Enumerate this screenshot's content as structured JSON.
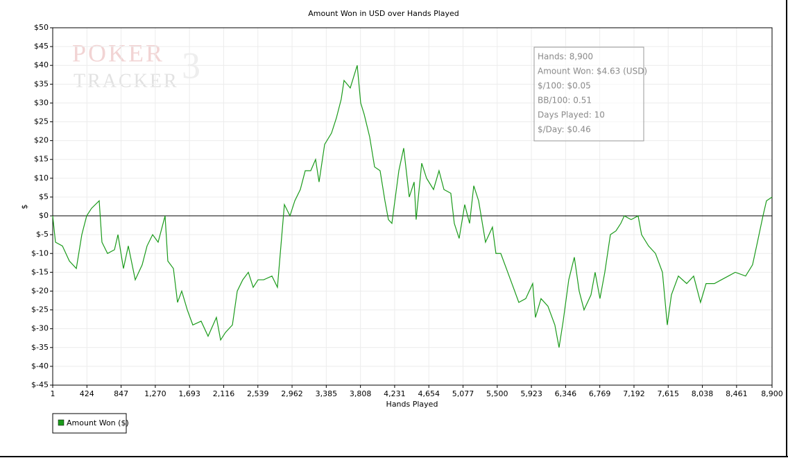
{
  "chart_data": {
    "type": "line",
    "title": "Amount Won in USD over Hands Played",
    "xlabel": "Hands Played",
    "ylabel": "$",
    "watermark": [
      "POKER",
      "TRACKER",
      "3"
    ],
    "stats": [
      "Hands: 8,900",
      "Amount Won: $4.63 (USD)",
      "$/100: $0.05",
      "BB/100: 0.51",
      "Days Played: 10",
      "$/Day: $0.46"
    ],
    "xlim": [
      1,
      8900
    ],
    "ylim": [
      -45,
      50
    ],
    "xticks": [
      1,
      424,
      847,
      {
        "value": 1270,
        "label": "1,270"
      },
      {
        "value": 1693,
        "label": "1,693"
      },
      {
        "value": 2116,
        "label": "2,116"
      },
      {
        "value": 2539,
        "label": "2,539"
      },
      {
        "value": 2962,
        "label": "2,962"
      },
      {
        "value": 3385,
        "label": "3,385"
      },
      {
        "value": 3808,
        "label": "3,808"
      },
      {
        "value": 4231,
        "label": "4,231"
      },
      {
        "value": 4654,
        "label": "4,654"
      },
      {
        "value": 5077,
        "label": "5,077"
      },
      {
        "value": 5500,
        "label": "5,500"
      },
      {
        "value": 5923,
        "label": "5,923"
      },
      {
        "value": 6346,
        "label": "6,346"
      },
      {
        "value": 6769,
        "label": "6,769"
      },
      {
        "value": 7192,
        "label": "7,192"
      },
      {
        "value": 7615,
        "label": "7,615"
      },
      {
        "value": 8038,
        "label": "8,038"
      },
      {
        "value": 8461,
        "label": "8,461"
      },
      {
        "value": 8900,
        "label": "8,900"
      }
    ],
    "yticks": [
      {
        "value": 50,
        "label": "$50"
      },
      {
        "value": 45,
        "label": "$45"
      },
      {
        "value": 40,
        "label": "$40"
      },
      {
        "value": 35,
        "label": "$35"
      },
      {
        "value": 30,
        "label": "$30"
      },
      {
        "value": 25,
        "label": "$25"
      },
      {
        "value": 20,
        "label": "$20"
      },
      {
        "value": 15,
        "label": "$15"
      },
      {
        "value": 10,
        "label": "$10"
      },
      {
        "value": 5,
        "label": "$5"
      },
      {
        "value": 0,
        "label": "$0"
      },
      {
        "value": -5,
        "label": "$-5"
      },
      {
        "value": -10,
        "label": "$-10"
      },
      {
        "value": -15,
        "label": "$-15"
      },
      {
        "value": -20,
        "label": "$-20"
      },
      {
        "value": -25,
        "label": "$-25"
      },
      {
        "value": -30,
        "label": "$-30"
      },
      {
        "value": -35,
        "label": "$-35"
      },
      {
        "value": -40,
        "label": "$-40"
      },
      {
        "value": -45,
        "label": "$-45"
      }
    ],
    "grid": true,
    "x": [
      1,
      35,
      121,
      207,
      293,
      361,
      421,
      481,
      576,
      610,
      679,
      765,
      808,
      876,
      936,
      1022,
      1108,
      1168,
      1237,
      1305,
      1391,
      1425,
      1494,
      1545,
      1597,
      1666,
      1734,
      1837,
      1923,
      2026,
      2078,
      2138,
      2224,
      2284,
      2352,
      2421,
      2481,
      2541,
      2610,
      2713,
      2781,
      2824,
      2867,
      2936,
      2996,
      3064,
      3125,
      3193,
      3253,
      3296,
      3365,
      3450,
      3510,
      3570,
      3605,
      3682,
      3725,
      3768,
      3811,
      3854,
      3922,
      3983,
      4051,
      4111,
      4154,
      4197,
      4283,
      4343,
      4412,
      4472,
      4497,
      4566,
      4626,
      4712,
      4780,
      4841,
      4926,
      4969,
      5029,
      5098,
      5158,
      5210,
      5270,
      5355,
      5441,
      5484,
      5544,
      5613,
      5699,
      5767,
      5853,
      5939,
      5973,
      6042,
      6127,
      6213,
      6265,
      6316,
      6385,
      6454,
      6514,
      6574,
      6660,
      6711,
      6771,
      6831,
      6900,
      6969,
      7029,
      7072,
      7157,
      7243,
      7286,
      7372,
      7458,
      7544,
      7604,
      7655,
      7741,
      7844,
      7930,
      8015,
      8084,
      8187,
      8273,
      8359,
      8445,
      8573,
      8659,
      8719,
      8788,
      8831,
      8900
    ],
    "series": [
      {
        "name": "Amount Won ($)",
        "color": "#1a9a1a",
        "values": [
          0,
          -7,
          -8,
          -12,
          -14,
          -5,
          0,
          2,
          4,
          -7,
          -10,
          -9,
          -5,
          -14,
          -8,
          -17,
          -13,
          -8,
          -5,
          -7,
          0,
          -12,
          -14,
          -23,
          -20,
          -25,
          -29,
          -28,
          -32,
          -27,
          -33,
          -31,
          -29,
          -20,
          -17,
          -15,
          -19,
          -17,
          -17,
          -16,
          -19,
          -8,
          3,
          0,
          4,
          7,
          12,
          12,
          15,
          9,
          19,
          22,
          26,
          31,
          36,
          34,
          37,
          40,
          30,
          27,
          21,
          13,
          12,
          4,
          -1,
          -2,
          12,
          18,
          5,
          9,
          -1,
          14,
          10,
          7,
          12,
          7,
          6,
          -2,
          -6,
          3,
          -2,
          8,
          4,
          -7,
          -3,
          -10,
          -10,
          -14,
          -19,
          -23,
          -22,
          -18,
          -27,
          -22,
          -24,
          -29,
          -35,
          -28,
          -17,
          -11,
          -20,
          -25,
          -21,
          -15,
          -22,
          -15,
          -5,
          -4,
          -2,
          0,
          -1,
          0,
          -5,
          -8,
          -10,
          -15,
          -29,
          -21,
          -16,
          -18,
          -16,
          -23,
          -18,
          -18,
          -17,
          -16,
          -15,
          -16,
          -13,
          -7,
          0,
          4,
          5
        ]
      }
    ]
  }
}
